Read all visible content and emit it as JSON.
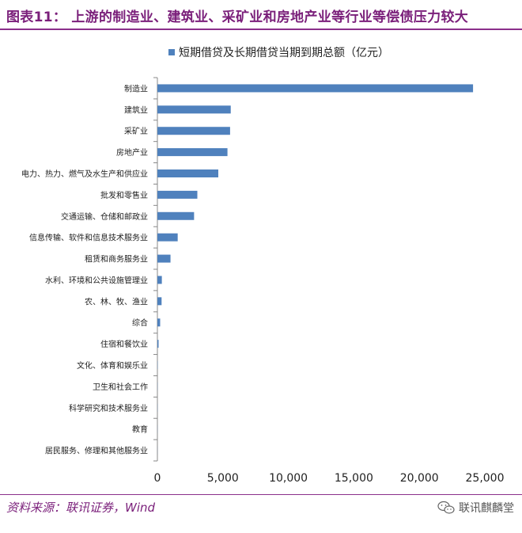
{
  "header": {
    "title": "图表11：  上游的制造业、建筑业、采矿业和房地产业等行业等偿债压力较大"
  },
  "footer": {
    "source": "资料来源：联讯证券，Wind",
    "watermark": "联讯麒麟堂",
    "watermark_icon": "wechat-icon"
  },
  "colors": {
    "title": "#7a1f7a",
    "bar": "#4f81bd",
    "axis": "#888888"
  },
  "chart_data": {
    "type": "bar",
    "orientation": "horizontal",
    "categories": [
      "制造业",
      "建筑业",
      "采矿业",
      "房地产业",
      "电力、热力、燃气及水生产和供应业",
      "批发和零售业",
      "交通运输、仓储和邮政业",
      "信息传输、软件和信息技术服务业",
      "租赁和商务服务业",
      "水利、环境和公共设施管理业",
      "农、林、牧、渔业",
      "综合",
      "住宿和餐饮业",
      "文化、体育和娱乐业",
      "卫生和社会工作",
      "科学研究和技术服务业",
      "教育",
      "居民服务、修理和其他服务业"
    ],
    "series": [
      {
        "name": "短期借贷及长期借贷当期到期总额（亿元）",
        "values": [
          24100,
          5600,
          5550,
          5350,
          4650,
          3050,
          2800,
          1550,
          1000,
          340,
          320,
          210,
          90,
          18,
          12,
          12,
          8,
          6
        ]
      }
    ],
    "xlim": [
      0,
      25000
    ],
    "xticks": [
      "0",
      "5,000",
      "10,000",
      "15,000",
      "20,000",
      "25,000"
    ],
    "legend_position": "top",
    "grid": false
  }
}
